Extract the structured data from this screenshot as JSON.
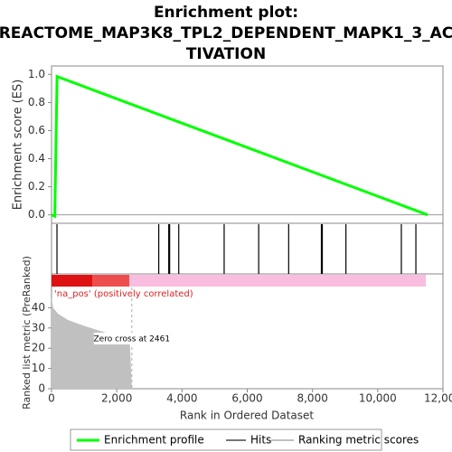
{
  "chart_data": [
    {
      "type": "line",
      "title": [
        "Enrichment plot:",
        "REACTOME_MAP3K8_TPL2_DEPENDENT_MAPK1_3_AC",
        "TIVATION"
      ],
      "ylabel": "Enrichment score (ES)",
      "xlim": [
        0,
        12000
      ],
      "ylim": [
        -0.06,
        1.06
      ],
      "yticks": [
        {
          "value": 0,
          "label": "0.0"
        },
        {
          "value": 0.2,
          "label": "0.2"
        },
        {
          "value": 0.4,
          "label": "0.4"
        },
        {
          "value": 0.6,
          "label": "0.6"
        },
        {
          "value": 0.8,
          "label": "0.8"
        },
        {
          "value": 1,
          "label": "1.0"
        }
      ],
      "series": [
        {
          "name": "Enrichment profile",
          "color": "#00ff00",
          "x": [
            0,
            100,
            170,
            11530
          ],
          "values": [
            0,
            -0.01,
            0.985,
            0
          ]
        }
      ]
    },
    {
      "type": "hits",
      "xlim": [
        0,
        12000
      ],
      "series": [
        {
          "name": "Hits",
          "color": "#000000",
          "x": [
            167,
            3287,
            3593,
            3621,
            3900,
            5292,
            6351,
            7270,
            8273,
            8301,
            9025,
            10724,
            11170
          ]
        }
      ]
    },
    {
      "type": "area",
      "subtitle": "'na_pos' (positively correlated)",
      "ylabel": "Ranked list metric (PreRanked)",
      "xlabel": "Rank in Ordered Dataset",
      "xlim": [
        0,
        12000
      ],
      "xticks": [
        0,
        {
          "value": 2000,
          "label": "2,000"
        },
        {
          "value": 4000,
          "label": "4,000"
        },
        {
          "value": 6000,
          "label": "6,000"
        },
        {
          "value": 8000,
          "label": "8,000"
        },
        {
          "value": 10000,
          "label": "10,000"
        },
        {
          "value": 12000,
          "label": "12,000"
        }
      ],
      "ylim": [
        0,
        50
      ],
      "yticks": [
        0,
        10,
        20,
        30,
        40
      ],
      "annotations": [
        {
          "text": "Zero cross at 2461",
          "x": 2461
        }
      ],
      "series": [
        {
          "name": "Ranking metric scores",
          "color": "#c0c0c0",
          "x": [
            0,
            50,
            200,
            500,
            1000,
            1500,
            2000,
            2400,
            2461
          ],
          "values": [
            45,
            40,
            37,
            34,
            31,
            28.5,
            26,
            23,
            0
          ]
        }
      ]
    }
  ]
}
